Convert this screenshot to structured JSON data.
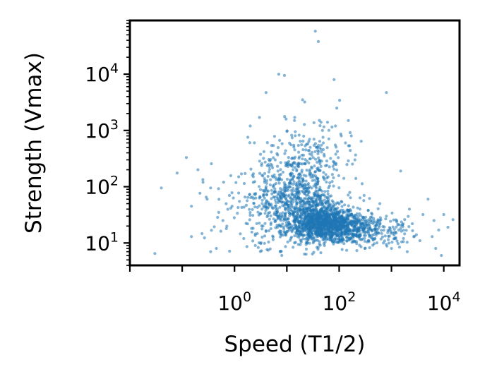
{
  "chart_data": {
    "type": "scatter",
    "xlabel": "Speed (T1/2)",
    "ylabel": "Strength (Vmax)",
    "xscale": "log",
    "yscale": "log",
    "xlim": [
      0.01,
      20000
    ],
    "ylim": [
      4,
      90000
    ],
    "grid": false,
    "color": "#1f77b4",
    "x_ticks": [
      {
        "base": "10",
        "exp": "0",
        "value": 1
      },
      {
        "base": "10",
        "exp": "2",
        "value": 100
      },
      {
        "base": "10",
        "exp": "4",
        "value": 10000
      }
    ],
    "y_ticks": [
      {
        "base": "10",
        "exp": "1",
        "value": 10
      },
      {
        "base": "10",
        "exp": "2",
        "value": 100
      },
      {
        "base": "10",
        "exp": "3",
        "value": 1000
      },
      {
        "base": "10",
        "exp": "4",
        "value": 10000
      }
    ],
    "sparse_points": {
      "x": [
        0.03,
        0.04,
        0.08,
        0.12,
        0.15,
        0.2,
        0.25,
        0.3,
        0.35,
        0.5,
        0.6,
        0.8,
        1.2,
        0.35,
        0.15,
        0.9,
        0.45,
        0.7,
        1.5,
        2.5,
        3.5,
        2.2,
        4,
        5,
        6,
        8,
        20,
        22,
        35,
        40,
        45,
        60,
        80,
        90,
        110,
        150,
        200,
        250,
        300,
        400,
        500,
        600,
        700,
        800,
        1000,
        1200,
        1500,
        2000,
        2500,
        3000,
        4000,
        5000,
        6000,
        7000,
        8000,
        10000,
        12000,
        15000,
        9000,
        6500,
        3500,
        28,
        33,
        85,
        800,
        1500,
        2200,
        9,
        4,
        7,
        14,
        50,
        3,
        2
      ],
      "y": [
        6.5,
        95,
        175,
        330,
        45,
        200,
        120,
        60,
        95,
        35,
        25,
        70,
        150,
        7,
        13,
        45,
        8,
        18,
        12,
        9,
        20,
        160,
        90,
        250,
        300,
        6,
        3500,
        3200,
        58000,
        38000,
        1400,
        1400,
        8000,
        2500,
        800,
        1500,
        300,
        40,
        70,
        25,
        15,
        50,
        10,
        4700,
        8,
        12,
        190,
        7,
        22,
        14,
        32,
        60,
        13,
        8,
        17,
        32,
        19,
        26,
        6,
        25,
        11,
        500,
        700,
        1200,
        30,
        18,
        40,
        9500,
        4700,
        10000,
        1500,
        600,
        1700,
        1200
      ]
    },
    "clusters": [
      {
        "x_center": 50,
        "y_center": 22,
        "x_spread_decades": 0.32,
        "y_spread_decades": 0.16,
        "count": 1100
      },
      {
        "x_center": 20,
        "y_center": 60,
        "x_spread_decades": 0.35,
        "y_spread_decades": 0.38,
        "count": 520
      },
      {
        "x_center": 6,
        "y_center": 60,
        "x_spread_decades": 0.32,
        "y_spread_decades": 0.4,
        "count": 230
      },
      {
        "x_center": 200,
        "y_center": 18,
        "x_spread_decades": 0.32,
        "y_spread_decades": 0.14,
        "count": 320
      },
      {
        "x_center": 1000,
        "y_center": 16,
        "x_spread_decades": 0.28,
        "y_spread_decades": 0.16,
        "count": 70
      },
      {
        "x_center": 30,
        "y_center": 350,
        "x_spread_decades": 0.38,
        "y_spread_decades": 0.3,
        "count": 140
      },
      {
        "x_center": 1.2,
        "y_center": 30,
        "x_spread_decades": 0.45,
        "y_spread_decades": 0.45,
        "count": 50
      }
    ]
  }
}
